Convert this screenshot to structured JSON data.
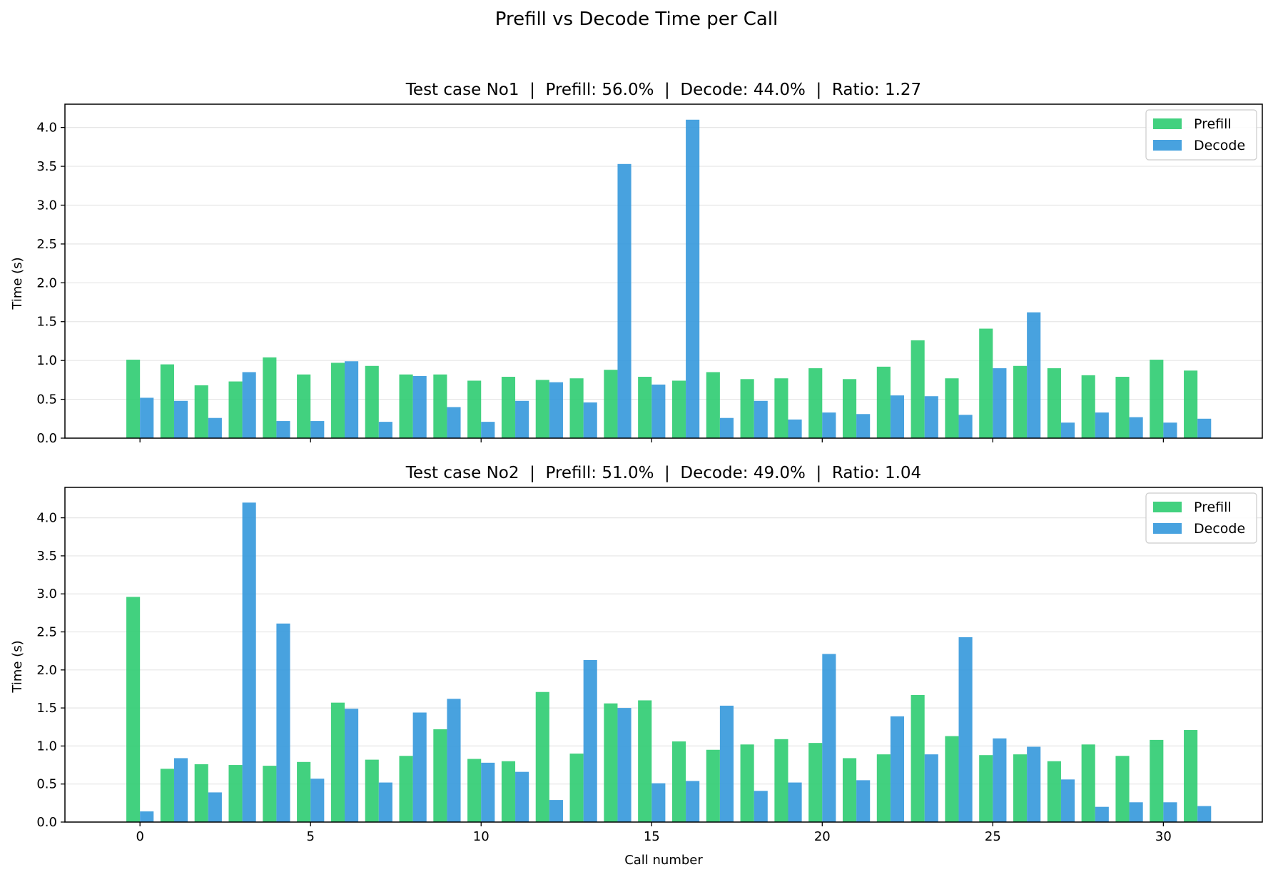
{
  "figure": {
    "suptitle": "Prefill vs Decode Time per Call"
  },
  "colors": {
    "prefill": "#2ecc71",
    "decode": "#3498db",
    "grid": "#e6e6e6",
    "axis": "#000000"
  },
  "chart_data": [
    {
      "type": "bar",
      "title": "Test case No1  |  Prefill: 56.0%  |  Decode: 44.0%  |  Ratio: 1.27",
      "xlabel": "",
      "ylabel": "Time (s)",
      "xlim": [
        -2.2,
        32.9
      ],
      "ylim": [
        0,
        4.3
      ],
      "xticks": [
        0,
        5,
        10,
        15,
        20,
        25,
        30
      ],
      "yticks": [
        0.0,
        0.5,
        1.0,
        1.5,
        2.0,
        2.5,
        3.0,
        3.5,
        4.0
      ],
      "ytick_labels": [
        "0.0",
        "0.5",
        "1.0",
        "1.5",
        "2.0",
        "2.5",
        "3.0",
        "3.5",
        "4.0"
      ],
      "grid": "y",
      "legend": "top-right",
      "categories": [
        0,
        1,
        2,
        3,
        4,
        5,
        6,
        7,
        8,
        9,
        10,
        11,
        12,
        13,
        14,
        15,
        16,
        17,
        18,
        19,
        20,
        21,
        22,
        23,
        24,
        25,
        26,
        27,
        28,
        29,
        30,
        31
      ],
      "series": [
        {
          "name": "Prefill",
          "color": "#2ecc71",
          "values": [
            1.01,
            0.95,
            0.68,
            0.73,
            1.04,
            0.82,
            0.97,
            0.93,
            0.82,
            0.82,
            0.74,
            0.79,
            0.75,
            0.77,
            0.88,
            0.79,
            0.74,
            0.85,
            0.76,
            0.77,
            0.9,
            0.76,
            0.92,
            1.26,
            0.77,
            1.41,
            0.93,
            0.9,
            0.81,
            0.79,
            1.01,
            0.87
          ]
        },
        {
          "name": "Decode",
          "color": "#3498db",
          "values": [
            0.52,
            0.48,
            0.26,
            0.85,
            0.22,
            0.22,
            0.99,
            0.21,
            0.8,
            0.4,
            0.21,
            0.48,
            0.72,
            0.46,
            3.53,
            0.69,
            4.1,
            0.26,
            0.48,
            0.24,
            0.33,
            0.31,
            0.55,
            0.54,
            0.3,
            0.9,
            1.62,
            0.2,
            0.33,
            0.27,
            0.2,
            0.25
          ]
        }
      ]
    },
    {
      "type": "bar",
      "title": "Test case No2  |  Prefill: 51.0%  |  Decode: 49.0%  |  Ratio: 1.04",
      "xlabel": "Call number",
      "ylabel": "Time (s)",
      "xlim": [
        -2.2,
        32.9
      ],
      "ylim": [
        0,
        4.4
      ],
      "xticks": [
        0,
        5,
        10,
        15,
        20,
        25,
        30
      ],
      "xtick_labels": [
        "0",
        "5",
        "10",
        "15",
        "20",
        "25",
        "30"
      ],
      "yticks": [
        0.0,
        0.5,
        1.0,
        1.5,
        2.0,
        2.5,
        3.0,
        3.5,
        4.0
      ],
      "ytick_labels": [
        "0.0",
        "0.5",
        "1.0",
        "1.5",
        "2.0",
        "2.5",
        "3.0",
        "3.5",
        "4.0"
      ],
      "grid": "y",
      "legend": "top-right",
      "categories": [
        0,
        1,
        2,
        3,
        4,
        5,
        6,
        7,
        8,
        9,
        10,
        11,
        12,
        13,
        14,
        15,
        16,
        17,
        18,
        19,
        20,
        21,
        22,
        23,
        24,
        25,
        26,
        27,
        28,
        29,
        30,
        31
      ],
      "series": [
        {
          "name": "Prefill",
          "color": "#2ecc71",
          "values": [
            2.96,
            0.7,
            0.76,
            0.75,
            0.74,
            0.79,
            1.57,
            0.82,
            0.87,
            1.22,
            0.83,
            0.8,
            1.71,
            0.9,
            1.56,
            1.6,
            1.06,
            0.95,
            1.02,
            1.09,
            1.04,
            0.84,
            0.89,
            1.67,
            1.13,
            0.88,
            0.89,
            0.8,
            1.02,
            0.87,
            1.08,
            1.21
          ]
        },
        {
          "name": "Decode",
          "color": "#3498db",
          "values": [
            0.14,
            0.84,
            0.39,
            4.2,
            2.61,
            0.57,
            1.49,
            0.52,
            1.44,
            1.62,
            0.78,
            0.66,
            0.29,
            2.13,
            1.5,
            0.51,
            0.54,
            1.53,
            0.41,
            0.52,
            2.21,
            0.55,
            1.39,
            0.89,
            2.43,
            1.1,
            0.99,
            0.56,
            0.2,
            0.26,
            0.26,
            0.21
          ]
        }
      ]
    }
  ]
}
